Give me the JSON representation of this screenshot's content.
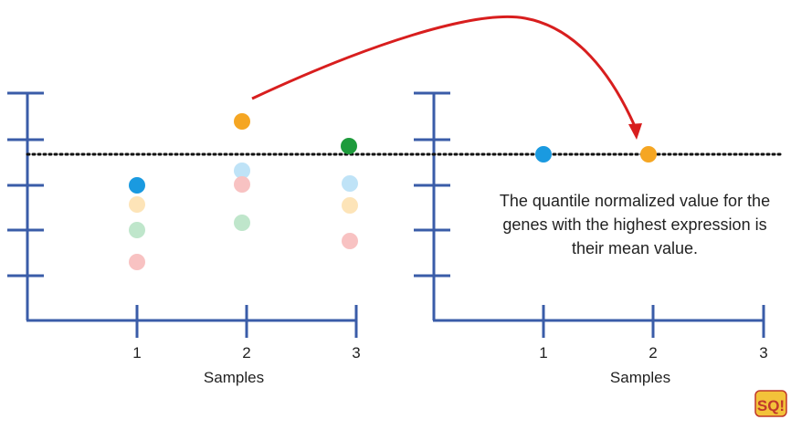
{
  "colors": {
    "axis": "#3a5ca8",
    "arrow": "#d81e1e",
    "dotted_line": "#111111",
    "blue": "#1a9ae0",
    "orange": "#f5a623",
    "green": "#1e9b3c",
    "light_blue": "#bfe3f7",
    "light_orange": "#fde4b8",
    "light_green": "#bfe6cb",
    "light_red": "#f8c2c2"
  },
  "left_panel": {
    "xlabel": "Samples",
    "ticks": [
      "1",
      "2",
      "3"
    ]
  },
  "right_panel": {
    "xlabel": "Samples",
    "ticks": [
      "1",
      "2",
      "3"
    ]
  },
  "caption": "The quantile normalized value for the genes with the highest expression is their mean value.",
  "logo_text": "SQ!"
}
